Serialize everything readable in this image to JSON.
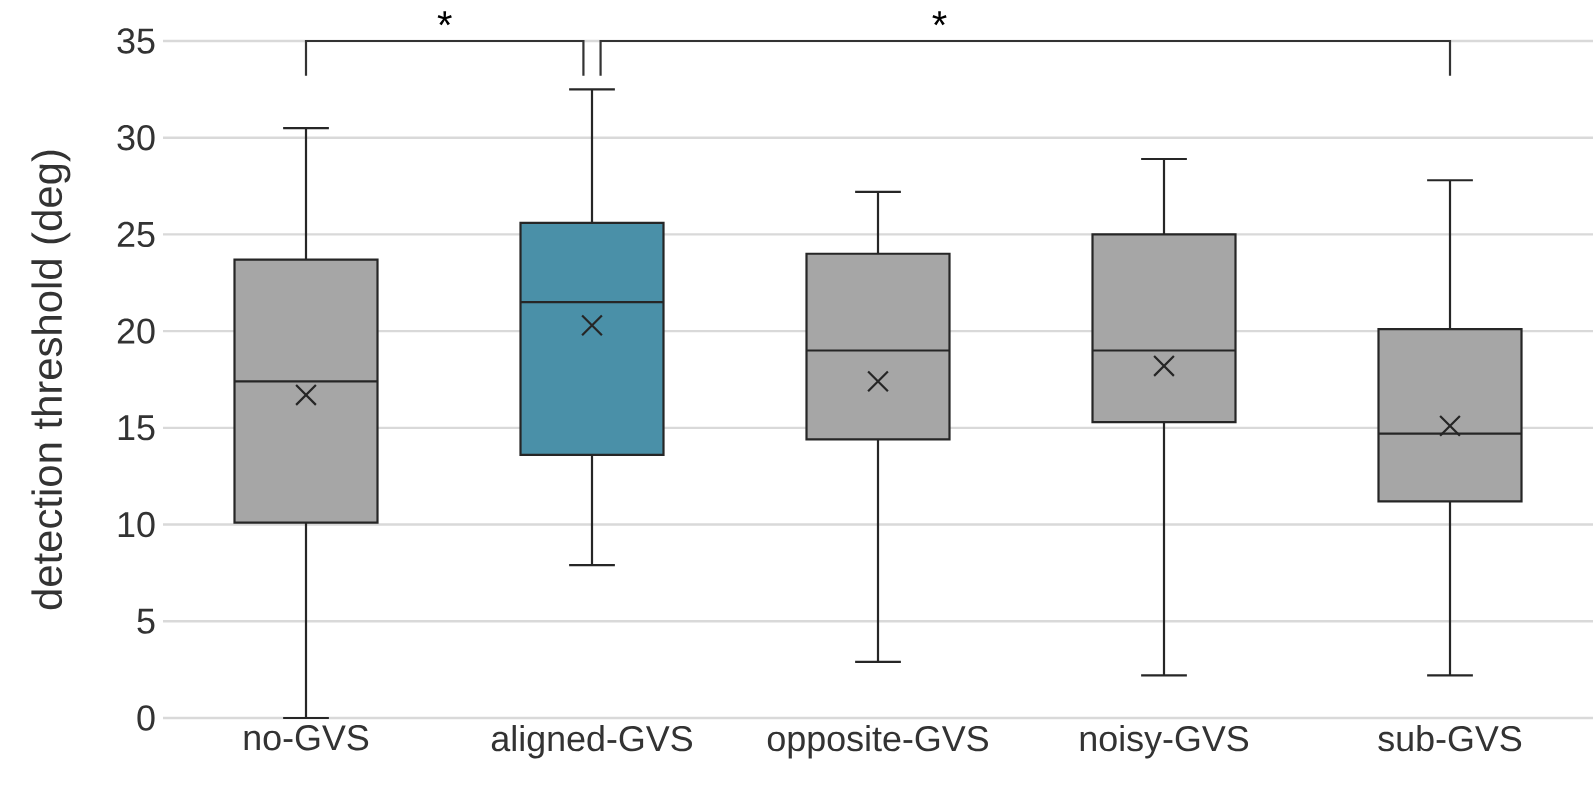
{
  "chart_data": {
    "type": "box",
    "ylabel": "detection threshold (deg)",
    "categories": [
      "no-GVS",
      "aligned-GVS",
      "opposite-GVS",
      "noisy-GVS",
      "sub-GVS"
    ],
    "boxes": [
      {
        "low": 0,
        "q1": 10.1,
        "median": 17.4,
        "q3": 23.7,
        "high": 30.5,
        "mean": 16.7
      },
      {
        "low": 7.9,
        "q1": 13.6,
        "median": 21.5,
        "q3": 25.6,
        "high": 32.5,
        "mean": 20.3
      },
      {
        "low": 2.9,
        "q1": 14.4,
        "median": 19.0,
        "q3": 24.0,
        "high": 27.2,
        "mean": 17.4
      },
      {
        "low": 2.2,
        "q1": 15.3,
        "median": 19.0,
        "q3": 25.0,
        "high": 28.9,
        "mean": 18.2
      },
      {
        "low": 2.2,
        "q1": 11.2,
        "median": 14.7,
        "q3": 20.1,
        "high": 27.8,
        "mean": 15.1
      }
    ],
    "colors": [
      "#a6a6a6",
      "#4a90a8",
      "#a6a6a6",
      "#a6a6a6",
      "#a6a6a6"
    ],
    "ylim": [
      0,
      35
    ],
    "yticks": [
      0,
      5,
      10,
      15,
      20,
      25,
      30,
      35
    ],
    "grid": "y",
    "annotations": [
      "*",
      "*"
    ]
  }
}
